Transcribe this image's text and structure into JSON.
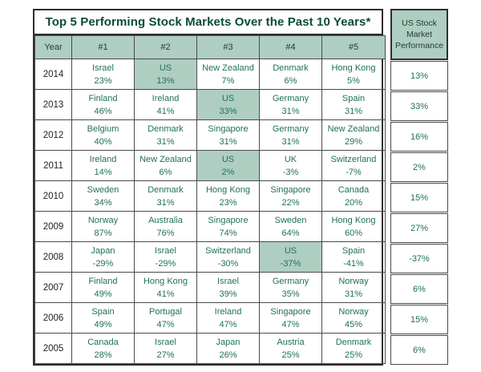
{
  "title": "Top 5 Performing Stock Markets Over the Past 10 Years*",
  "colors": {
    "sage_green": "#afcec2",
    "title_green": "#0b4b3a",
    "cell_green": "#20705a",
    "header_text": "#233b32",
    "border_dark": "#2f2f2f"
  },
  "table": {
    "columns": [
      "Year",
      "#1",
      "#2",
      "#3",
      "#4",
      "#5"
    ],
    "rows": [
      {
        "year": "2014",
        "cells": [
          {
            "country": "Israel",
            "pct": "23%",
            "highlight": false
          },
          {
            "country": "US",
            "pct": "13%",
            "highlight": true
          },
          {
            "country": "New Zealand",
            "pct": "7%",
            "highlight": false
          },
          {
            "country": "Denmark",
            "pct": "6%",
            "highlight": false
          },
          {
            "country": "Hong Kong",
            "pct": "5%",
            "highlight": false
          }
        ]
      },
      {
        "year": "2013",
        "cells": [
          {
            "country": "Finland",
            "pct": "46%",
            "highlight": false
          },
          {
            "country": "Ireland",
            "pct": "41%",
            "highlight": false
          },
          {
            "country": "US",
            "pct": "33%",
            "highlight": true
          },
          {
            "country": "Germany",
            "pct": "31%",
            "highlight": false
          },
          {
            "country": "Spain",
            "pct": "31%",
            "highlight": false
          }
        ]
      },
      {
        "year": "2012",
        "cells": [
          {
            "country": "Belgium",
            "pct": "40%",
            "highlight": false
          },
          {
            "country": "Denmark",
            "pct": "31%",
            "highlight": false
          },
          {
            "country": "Singapore",
            "pct": "31%",
            "highlight": false
          },
          {
            "country": "Germany",
            "pct": "31%",
            "highlight": false
          },
          {
            "country": "New Zealand",
            "pct": "29%",
            "highlight": false
          }
        ]
      },
      {
        "year": "2011",
        "cells": [
          {
            "country": "Ireland",
            "pct": "14%",
            "highlight": false
          },
          {
            "country": "New Zealand",
            "pct": "6%",
            "highlight": false
          },
          {
            "country": "US",
            "pct": "2%",
            "highlight": true
          },
          {
            "country": "UK",
            "pct": "-3%",
            "highlight": false
          },
          {
            "country": "Switzerland",
            "pct": "-7%",
            "highlight": false
          }
        ]
      },
      {
        "year": "2010",
        "cells": [
          {
            "country": "Sweden",
            "pct": "34%",
            "highlight": false
          },
          {
            "country": "Denmark",
            "pct": "31%",
            "highlight": false
          },
          {
            "country": "Hong Kong",
            "pct": "23%",
            "highlight": false
          },
          {
            "country": "Singapore",
            "pct": "22%",
            "highlight": false
          },
          {
            "country": "Canada",
            "pct": "20%",
            "highlight": false
          }
        ]
      },
      {
        "year": "2009",
        "cells": [
          {
            "country": "Norway",
            "pct": "87%",
            "highlight": false
          },
          {
            "country": "Australia",
            "pct": "76%",
            "highlight": false
          },
          {
            "country": "Singapore",
            "pct": "74%",
            "highlight": false
          },
          {
            "country": "Sweden",
            "pct": "64%",
            "highlight": false
          },
          {
            "country": "Hong Kong",
            "pct": "60%",
            "highlight": false
          }
        ]
      },
      {
        "year": "2008",
        "cells": [
          {
            "country": "Japan",
            "pct": "-29%",
            "highlight": false
          },
          {
            "country": "Israel",
            "pct": "-29%",
            "highlight": false
          },
          {
            "country": "Switzerland",
            "pct": "-30%",
            "highlight": false
          },
          {
            "country": "US",
            "pct": "-37%",
            "highlight": true
          },
          {
            "country": "Spain",
            "pct": "-41%",
            "highlight": false
          }
        ]
      },
      {
        "year": "2007",
        "cells": [
          {
            "country": "Finland",
            "pct": "49%",
            "highlight": false
          },
          {
            "country": "Hong Kong",
            "pct": "41%",
            "highlight": false
          },
          {
            "country": "Israel",
            "pct": "39%",
            "highlight": false
          },
          {
            "country": "Germany",
            "pct": "35%",
            "highlight": false
          },
          {
            "country": "Norway",
            "pct": "31%",
            "highlight": false
          }
        ]
      },
      {
        "year": "2006",
        "cells": [
          {
            "country": "Spain",
            "pct": "49%",
            "highlight": false
          },
          {
            "country": "Portugal",
            "pct": "47%",
            "highlight": false
          },
          {
            "country": "Ireland",
            "pct": "47%",
            "highlight": false
          },
          {
            "country": "Singapore",
            "pct": "47%",
            "highlight": false
          },
          {
            "country": "Norway",
            "pct": "45%",
            "highlight": false
          }
        ]
      },
      {
        "year": "2005",
        "cells": [
          {
            "country": "Canada",
            "pct": "28%",
            "highlight": false
          },
          {
            "country": "Israel",
            "pct": "27%",
            "highlight": false
          },
          {
            "country": "Japan",
            "pct": "26%",
            "highlight": false
          },
          {
            "country": "Austria",
            "pct": "25%",
            "highlight": false
          },
          {
            "country": "Denmark",
            "pct": "25%",
            "highlight": false
          }
        ]
      }
    ]
  },
  "sidebar": {
    "header": "US Stock Market Performance",
    "values": [
      "13%",
      "33%",
      "16%",
      "2%",
      "15%",
      "27%",
      "-37%",
      "6%",
      "15%",
      "6%"
    ]
  },
  "chart_data": {
    "type": "table",
    "title": "Top 5 Performing Stock Markets Over the Past 10 Years*",
    "columns": [
      "Year",
      "#1",
      "#2",
      "#3",
      "#4",
      "#5",
      "US Stock Market Performance"
    ],
    "rows": [
      [
        "2014",
        "Israel 23%",
        "US 13%",
        "New Zealand 7%",
        "Denmark 6%",
        "Hong Kong 5%",
        "13%"
      ],
      [
        "2013",
        "Finland 46%",
        "Ireland 41%",
        "US 33%",
        "Germany 31%",
        "Spain 31%",
        "33%"
      ],
      [
        "2012",
        "Belgium 40%",
        "Denmark 31%",
        "Singapore 31%",
        "Germany 31%",
        "New Zealand 29%",
        "16%"
      ],
      [
        "2011",
        "Ireland 14%",
        "New Zealand 6%",
        "US 2%",
        "UK -3%",
        "Switzerland -7%",
        "2%"
      ],
      [
        "2010",
        "Sweden 34%",
        "Denmark 31%",
        "Hong Kong 23%",
        "Singapore 22%",
        "Canada 20%",
        "15%"
      ],
      [
        "2009",
        "Norway 87%",
        "Australia 76%",
        "Singapore 74%",
        "Sweden 64%",
        "Hong Kong 60%",
        "27%"
      ],
      [
        "2008",
        "Japan -29%",
        "Israel -29%",
        "Switzerland -30%",
        "US -37%",
        "Spain -41%",
        "-37%"
      ],
      [
        "2007",
        "Finland 49%",
        "Hong Kong 41%",
        "Israel 39%",
        "Germany 35%",
        "Norway 31%",
        "6%"
      ],
      [
        "2006",
        "Spain 49%",
        "Portugal 47%",
        "Ireland 47%",
        "Singapore 47%",
        "Norway 45%",
        "15%"
      ],
      [
        "2005",
        "Canada 28%",
        "Israel 27%",
        "Japan 26%",
        "Austria 25%",
        "Denmark 25%",
        "6%"
      ]
    ],
    "notes": "US cells in the ranking grid are highlighted with sage-green background; US appears in top 5 in 2014 (#2), 2013 (#3), 2011 (#3), 2008 (#4)."
  }
}
